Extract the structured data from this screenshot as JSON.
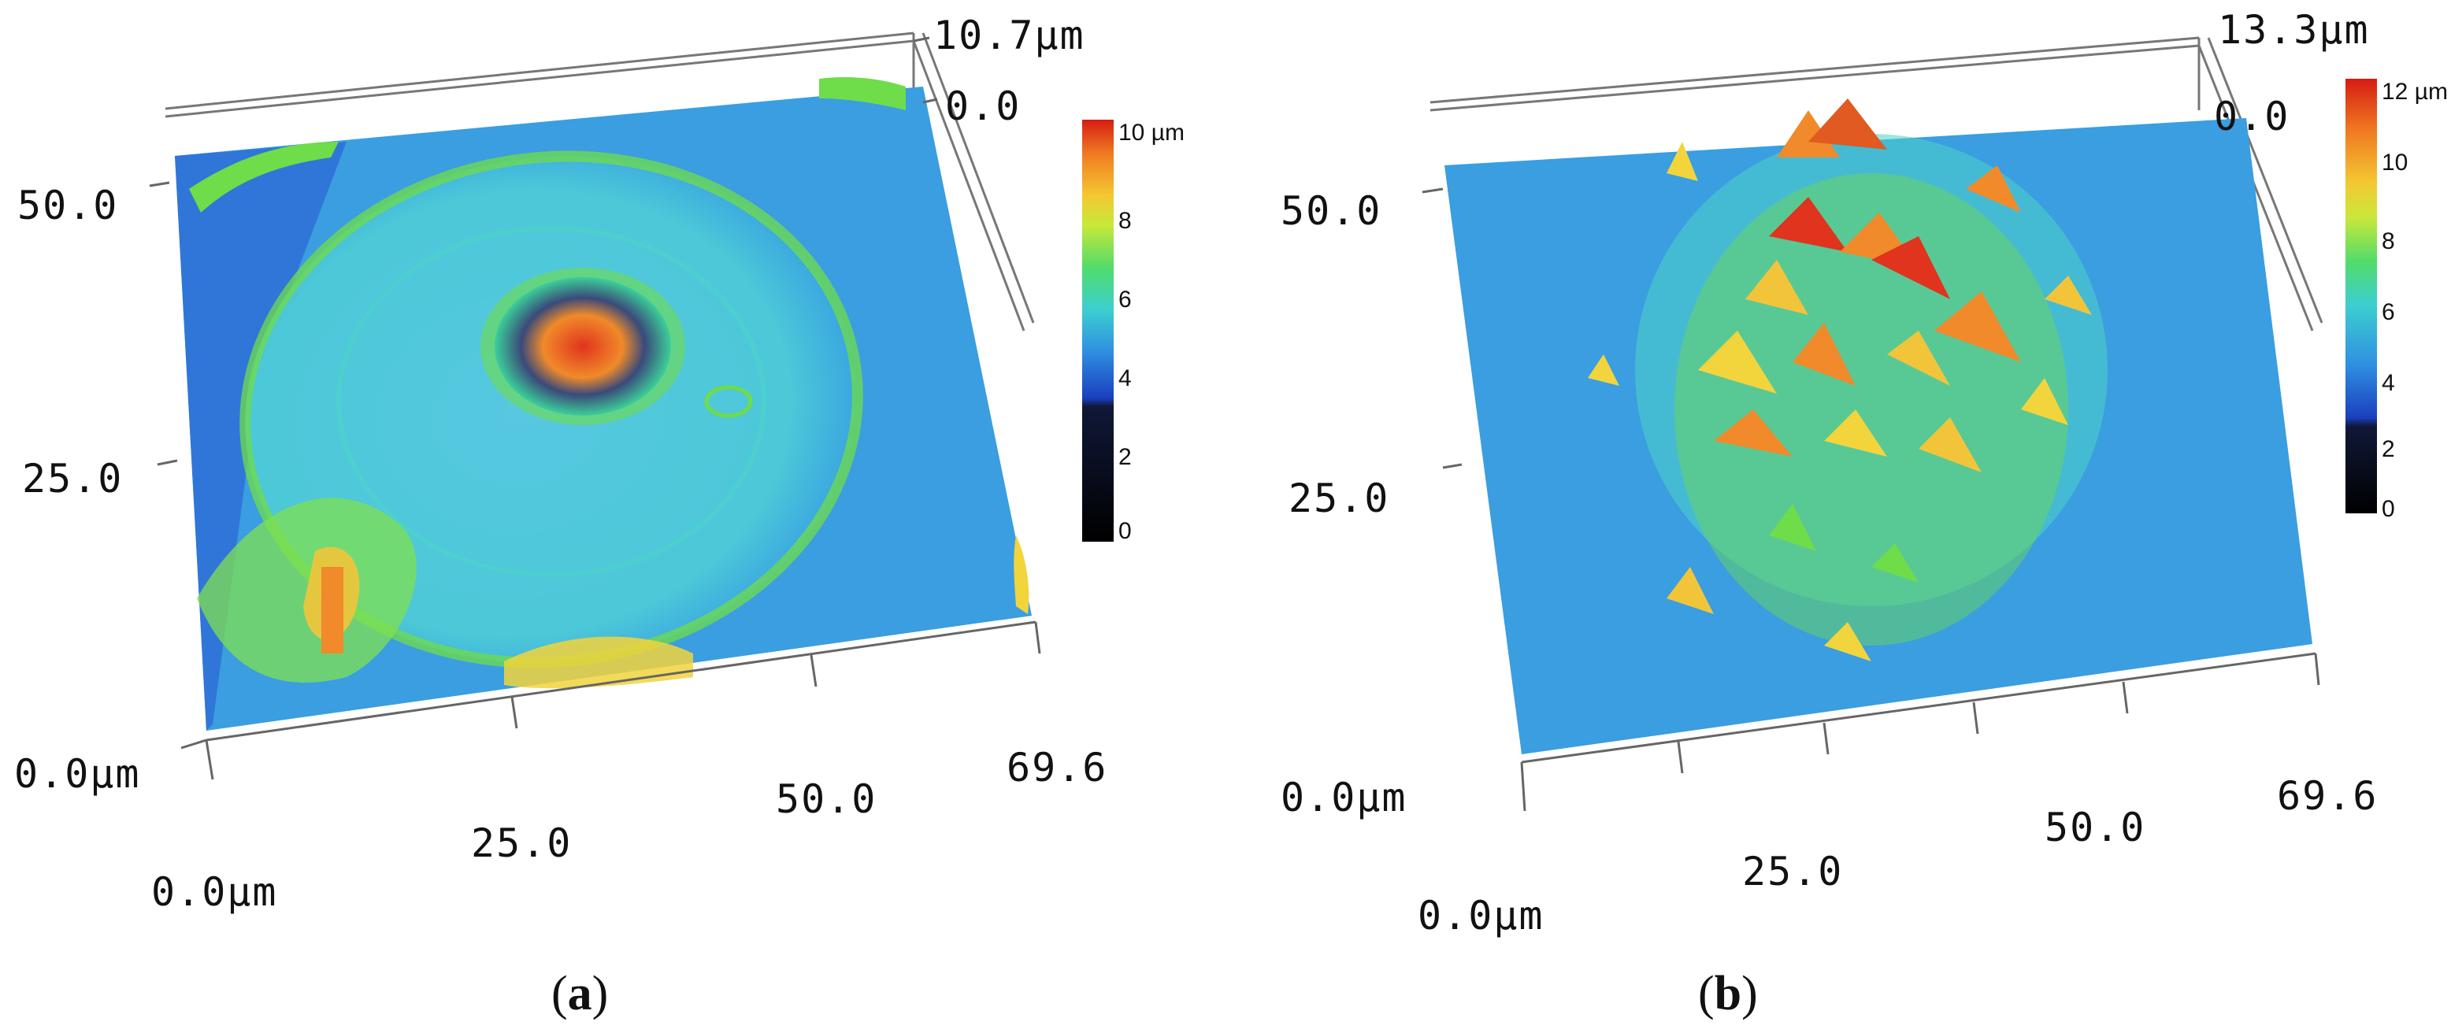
{
  "panels": [
    {
      "id": "a",
      "caption_letter": "a",
      "z_top_label": "10.7µm",
      "z_zero_label": "0.0",
      "y_tick_50": "50.0",
      "y_tick_25": "25.0",
      "y_origin_label": "0.0µm",
      "x_tick_25": "25.0",
      "x_tick_50": "50.0",
      "x_end_label": "69.6",
      "x_origin_label": "0.0µm",
      "colorbar_ticks": [
        "10 µm",
        "8",
        "6",
        "4",
        "2",
        "0"
      ]
    },
    {
      "id": "b",
      "caption_letter": "b",
      "z_top_label": "13.3µm",
      "z_zero_label": "0.0",
      "y_tick_50": "50.0",
      "y_tick_25": "25.0",
      "y_origin_label": "0.0µm",
      "x_tick_25": "25.0",
      "x_tick_50": "50.0",
      "x_end_label": "69.6",
      "x_origin_label": "0.0µm",
      "colorbar_ticks": [
        "12 µm",
        "10",
        "8",
        "6",
        "4",
        "2",
        "0"
      ]
    }
  ],
  "colors": {
    "surface_base": "#3aa6e0",
    "surface_edge": "#2f73d6",
    "cyan": "#4fd3c8",
    "green": "#6fdc4a",
    "yellow": "#f2d43c",
    "orange": "#f28a2a",
    "red": "#e02a1e"
  }
}
